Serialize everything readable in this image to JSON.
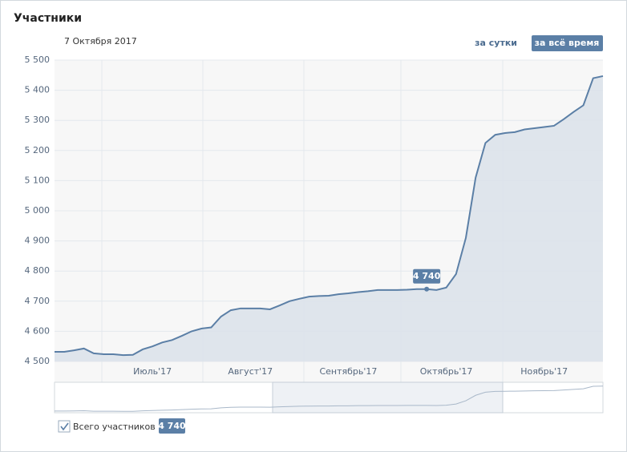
{
  "chart_data": {
    "type": "area",
    "title": "Участники",
    "date_label": "7 Октября 2017",
    "buttons": [
      "за сутки",
      "за всё время"
    ],
    "categories": [
      null,
      null,
      null,
      null,
      null,
      null,
      null,
      null,
      null,
      null,
      "Июль'17",
      null,
      null,
      null,
      null,
      null,
      null,
      null,
      null,
      null,
      "Август'17",
      null,
      null,
      null,
      null,
      null,
      null,
      null,
      null,
      null,
      "Сентябрь'17",
      null,
      null,
      null,
      null,
      null,
      null,
      null,
      null,
      null,
      "Октябрь'17",
      null,
      null,
      null,
      null,
      null,
      null,
      null,
      null,
      null,
      "Ноябрь'17",
      null,
      null,
      null,
      null,
      null,
      null
    ],
    "series": [
      {
        "name": "Всего участников",
        "color": "#5b7fa6",
        "values": [
          4532,
          4532,
          4537,
          4543,
          4527,
          4524,
          4524,
          4521,
          4522,
          4540,
          4550,
          4563,
          4571,
          4585,
          4600,
          4609,
          4613,
          4649,
          4670,
          4676,
          4676,
          4676,
          4673,
          4686,
          4700,
          4708,
          4715,
          4717,
          4718,
          4723,
          4726,
          4730,
          4733,
          4737,
          4737,
          4737,
          4738,
          4740,
          4740,
          4737,
          4745,
          4790,
          4910,
          5110,
          5225,
          5252,
          5258,
          5261,
          5270,
          5274,
          5278,
          5282,
          5304,
          5328,
          5350,
          5440,
          5447
        ],
        "value_labels": [
          null,
          null,
          null,
          null,
          null,
          null,
          null,
          null,
          null,
          null,
          null,
          null,
          null,
          null,
          null,
          null,
          null,
          null,
          null,
          null,
          null,
          null,
          null,
          null,
          null,
          null,
          null,
          null,
          null,
          null,
          null,
          null,
          null,
          null,
          null,
          null,
          null,
          null,
          "4 740",
          null,
          null,
          null,
          null,
          null,
          null,
          null,
          null,
          null,
          null,
          null,
          null,
          null,
          null,
          null,
          null,
          null,
          null
        ]
      }
    ],
    "ylim": [
      4500,
      5500
    ],
    "yticks": [
      {
        "value": 4500,
        "label": "4 500"
      },
      {
        "value": 4600,
        "label": "4 600"
      },
      {
        "value": 4700,
        "label": "4 700"
      },
      {
        "value": 4800,
        "label": "4 800"
      },
      {
        "value": 4900,
        "label": "4 900"
      },
      {
        "value": 5000,
        "label": "5 000"
      },
      {
        "value": 5100,
        "label": "5 100"
      },
      {
        "value": 5200,
        "label": "5 200"
      },
      {
        "value": 5300,
        "label": "5 300"
      },
      {
        "value": 5400,
        "label": "5 400"
      },
      {
        "value": 5500,
        "label": "5 500"
      }
    ],
    "grid": true
  }
}
